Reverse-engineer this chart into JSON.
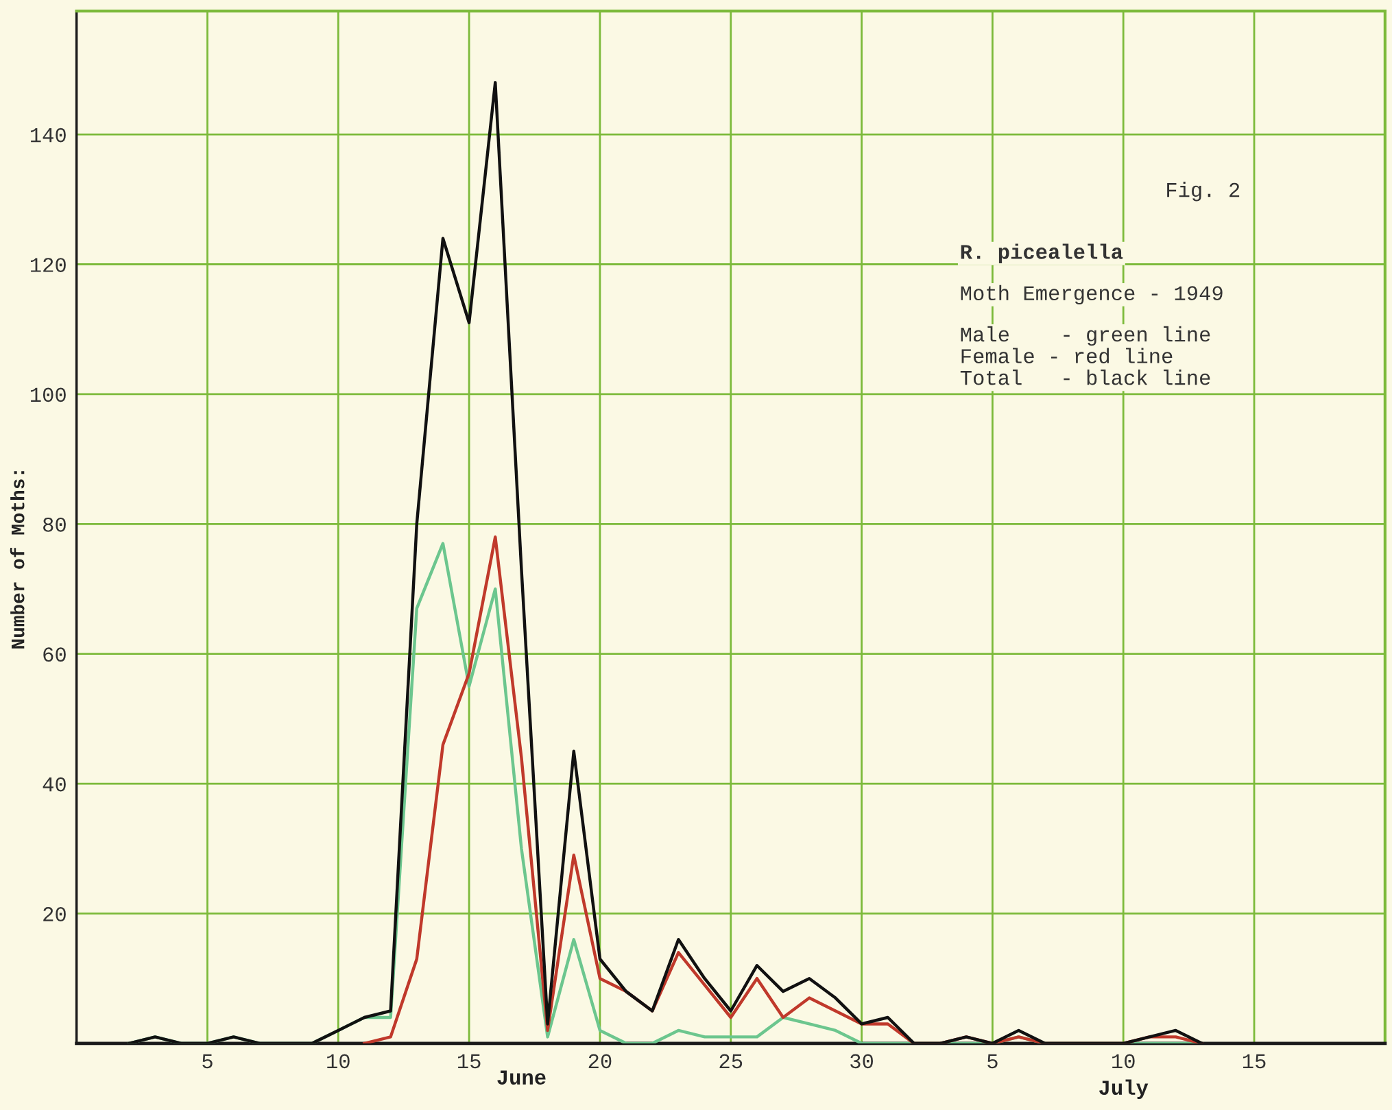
{
  "chart_data": {
    "type": "line",
    "title": "R. picealella",
    "subtitle": "Moth Emergence - 1949",
    "xlabel": "June",
    "ylabel": "Number of Moths:",
    "x": [
      "1949-06-02",
      "1949-06-03",
      "1949-06-04",
      "1949-06-05",
      "1949-06-06",
      "1949-06-07",
      "1949-06-08",
      "1949-06-09",
      "1949-06-10",
      "1949-06-11",
      "1949-06-12",
      "1949-06-13",
      "1949-06-14",
      "1949-06-15",
      "1949-06-16",
      "1949-06-17",
      "1949-06-18",
      "1949-06-19",
      "1949-06-20",
      "1949-06-21",
      "1949-06-22",
      "1949-06-23",
      "1949-06-24",
      "1949-06-25",
      "1949-06-26",
      "1949-06-27",
      "1949-06-28",
      "1949-06-29",
      "1949-06-30",
      "1949-07-01",
      "1949-07-02",
      "1949-07-03",
      "1949-07-04",
      "1949-07-05",
      "1949-07-06",
      "1949-07-07",
      "1949-07-08",
      "1949-07-09",
      "1949-07-10",
      "1949-07-11",
      "1949-07-12",
      "1949-07-13"
    ],
    "series": [
      {
        "color": "#6cc68e",
        "values": [
          0,
          1,
          0,
          0,
          1,
          0,
          0,
          0,
          2,
          4,
          4,
          67,
          77,
          55,
          70,
          30,
          1,
          16,
          2,
          0,
          0,
          2,
          1,
          1,
          1,
          4,
          3,
          2,
          0,
          0,
          0,
          0,
          0,
          0,
          1,
          0,
          0,
          0,
          0,
          0,
          0,
          0
        ]
      },
      {
        "color": "#c0392b",
        "values": [
          null,
          null,
          null,
          null,
          null,
          null,
          null,
          null,
          null,
          0,
          1,
          13,
          46,
          57,
          78,
          44,
          2,
          29,
          10,
          8,
          5,
          14,
          9,
          4,
          10,
          4,
          7,
          5,
          3,
          3,
          0,
          0,
          1,
          0,
          1,
          0,
          0,
          0,
          0,
          1,
          1,
          0
        ]
      },
      {
        "color": "#111111",
        "values": [
          0,
          1,
          0,
          0,
          1,
          0,
          0,
          0,
          2,
          4,
          5,
          80,
          124,
          111,
          148,
          73,
          3,
          45,
          13,
          8,
          5,
          16,
          10,
          5,
          12,
          8,
          10,
          7,
          3,
          4,
          0,
          0,
          1,
          0,
          2,
          0,
          0,
          0,
          0,
          1,
          2,
          0
        ]
      }
    ],
    "xlim": [
      "1949-05-31",
      "1949-07-20"
    ],
    "xticks": [
      {
        "value": "1949-06-05",
        "label": "5"
      },
      {
        "value": "1949-06-10",
        "label": "10"
      },
      {
        "value": "1949-06-15",
        "label": "15"
      },
      {
        "value": "1949-06-20",
        "label": "20"
      },
      {
        "value": "1949-06-25",
        "label": "25"
      },
      {
        "value": "1949-06-30",
        "label": "30"
      },
      {
        "value": "1949-07-05",
        "label": "5"
      },
      {
        "value": "1949-07-10",
        "label": "10"
      },
      {
        "value": "1949-07-15",
        "label": "15"
      }
    ],
    "ylim": [
      0,
      159
    ],
    "yticks": [
      20,
      40,
      60,
      80,
      100,
      120,
      140
    ],
    "grid": true,
    "marker": "none",
    "line_style": "solid",
    "annotations": [
      "Fig. 2",
      "Male    - green line",
      "Female - red line",
      "Total   - black line",
      "July"
    ]
  }
}
